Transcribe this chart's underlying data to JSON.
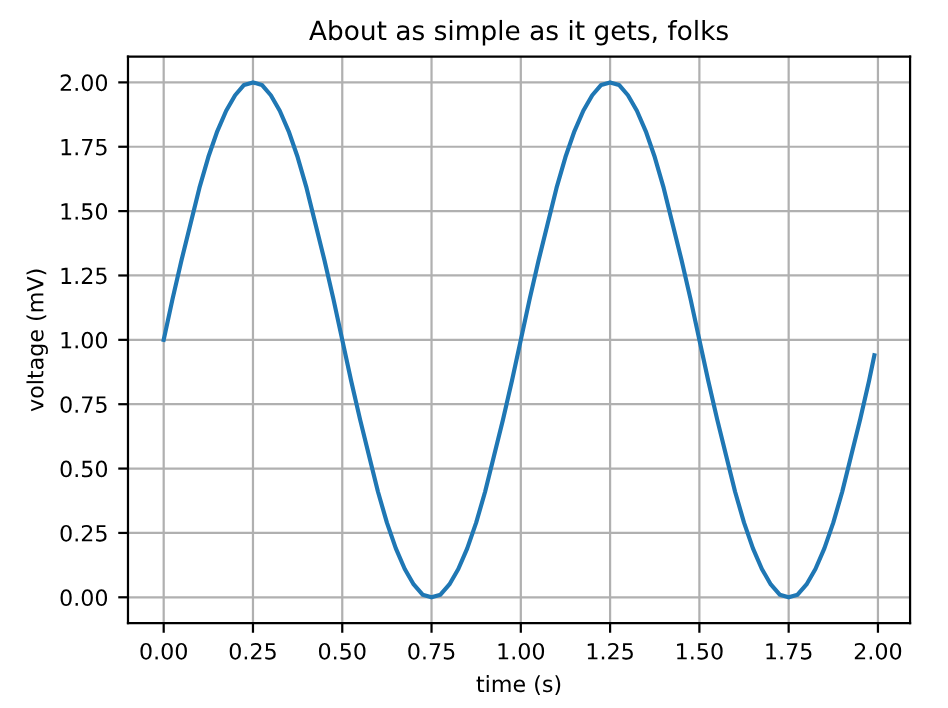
{
  "chart_data": {
    "type": "line",
    "title": "About as simple as it gets, folks",
    "xlabel": "time (s)",
    "ylabel": "voltage (mV)",
    "x": [
      0,
      0.025,
      0.05,
      0.075,
      0.1,
      0.125,
      0.15,
      0.175,
      0.2,
      0.225,
      0.25,
      0.275,
      0.3,
      0.325,
      0.35,
      0.375,
      0.4,
      0.425,
      0.45,
      0.475,
      0.5,
      0.525,
      0.55,
      0.575,
      0.6,
      0.625,
      0.65,
      0.675,
      0.7,
      0.725,
      0.75,
      0.775,
      0.8,
      0.825,
      0.85,
      0.875,
      0.9,
      0.925,
      0.95,
      0.975,
      1,
      1.025,
      1.05,
      1.075,
      1.1,
      1.125,
      1.15,
      1.175,
      1.2,
      1.225,
      1.25,
      1.275,
      1.3,
      1.325,
      1.35,
      1.375,
      1.4,
      1.425,
      1.45,
      1.475,
      1.5,
      1.525,
      1.55,
      1.575,
      1.6,
      1.625,
      1.65,
      1.675,
      1.7,
      1.725,
      1.75,
      1.775,
      1.8,
      1.825,
      1.85,
      1.875,
      1.9,
      1.925,
      1.95,
      1.975,
      1.99
    ],
    "series": [
      {
        "color": "#1f77b4",
        "values": [
          1.0,
          1.16,
          1.31,
          1.45,
          1.59,
          1.71,
          1.81,
          1.89,
          1.95,
          1.99,
          2.0,
          1.99,
          1.95,
          1.89,
          1.81,
          1.71,
          1.59,
          1.45,
          1.31,
          1.16,
          1.0,
          0.84,
          0.69,
          0.55,
          0.41,
          0.29,
          0.19,
          0.11,
          0.05,
          0.01,
          0.0,
          0.01,
          0.05,
          0.11,
          0.19,
          0.29,
          0.41,
          0.55,
          0.69,
          0.84,
          1.0,
          1.16,
          1.31,
          1.45,
          1.59,
          1.71,
          1.81,
          1.89,
          1.95,
          1.99,
          2.0,
          1.99,
          1.95,
          1.89,
          1.81,
          1.71,
          1.59,
          1.45,
          1.31,
          1.16,
          1.0,
          0.84,
          0.69,
          0.55,
          0.41,
          0.29,
          0.19,
          0.11,
          0.05,
          0.01,
          0.0,
          0.01,
          0.05,
          0.11,
          0.19,
          0.29,
          0.41,
          0.55,
          0.69,
          0.84,
          0.94
        ]
      }
    ],
    "xlim": [
      -0.1,
      2.09
    ],
    "ylim": [
      -0.1,
      2.1
    ],
    "xticks": [
      {
        "value": 0,
        "label": "0.00"
      },
      {
        "value": 0.25,
        "label": "0.25"
      },
      {
        "value": 0.5,
        "label": "0.50"
      },
      {
        "value": 0.75,
        "label": "0.75"
      },
      {
        "value": 1,
        "label": "1.00"
      },
      {
        "value": 1.25,
        "label": "1.25"
      },
      {
        "value": 1.5,
        "label": "1.50"
      },
      {
        "value": 1.75,
        "label": "1.75"
      },
      {
        "value": 2,
        "label": "2.00"
      }
    ],
    "yticks": [
      {
        "value": 0,
        "label": "0.00"
      },
      {
        "value": 0.25,
        "label": "0.25"
      },
      {
        "value": 0.5,
        "label": "0.50"
      },
      {
        "value": 0.75,
        "label": "0.75"
      },
      {
        "value": 1,
        "label": "1.00"
      },
      {
        "value": 1.25,
        "label": "1.25"
      },
      {
        "value": 1.5,
        "label": "1.50"
      },
      {
        "value": 1.75,
        "label": "1.75"
      },
      {
        "value": 2,
        "label": "2.00"
      }
    ],
    "grid": true,
    "marker": "none",
    "line_style": "solid"
  }
}
